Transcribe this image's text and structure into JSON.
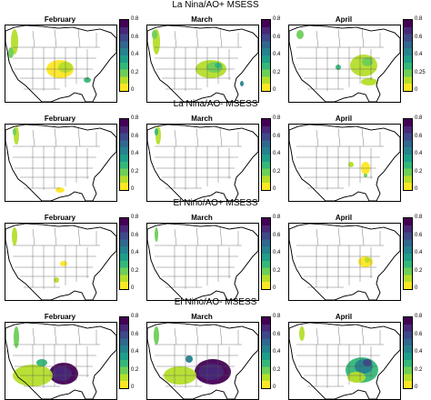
{
  "figure": {
    "rows": [
      {
        "title": "La Nina/AO+ MSESS",
        "panels": [
          {
            "month": "February",
            "ticks": [
              "0.8",
              "0.6",
              "0.4",
              "0.2",
              "0"
            ],
            "pattern": "la_ao_pos_feb"
          },
          {
            "month": "March",
            "ticks": [
              "0.8",
              "0.6",
              "0.4",
              "0.2",
              "0"
            ],
            "pattern": "la_ao_pos_mar"
          },
          {
            "month": "April",
            "ticks": [
              "0.8",
              "0.6",
              "0.4",
              "0.25",
              "0"
            ],
            "pattern": "la_ao_pos_apr"
          }
        ]
      },
      {
        "title": "La Nina/AO- MSESS",
        "panels": [
          {
            "month": "February",
            "ticks": [
              "0.8",
              "0.6",
              "0.4",
              "0.2",
              "0"
            ],
            "pattern": "la_ao_neg_feb"
          },
          {
            "month": "March",
            "ticks": [
              "0.8",
              "0.6",
              "0.4",
              "0.2",
              "0"
            ],
            "pattern": "la_ao_neg_mar"
          },
          {
            "month": "April",
            "ticks": [
              "0.8",
              "0.6",
              "0.4",
              "0.2",
              "0"
            ],
            "pattern": "la_ao_neg_apr"
          }
        ]
      },
      {
        "title": "El Nino/AO+ MSESS",
        "panels": [
          {
            "month": "February",
            "ticks": [
              "0.8",
              "0.6",
              "0.4",
              "0.2",
              "0"
            ],
            "pattern": "el_ao_pos_feb"
          },
          {
            "month": "March",
            "ticks": [
              "0.8",
              "0.6",
              "0.4",
              "0.2",
              "0"
            ],
            "pattern": "el_ao_pos_mar"
          },
          {
            "month": "April",
            "ticks": [
              "0.8",
              "0.6",
              "0.4",
              "0.2",
              "0"
            ],
            "pattern": "el_ao_pos_apr"
          }
        ]
      },
      {
        "title": "El Nino/AO- MSESS",
        "panels": [
          {
            "month": "February",
            "ticks": [
              "0.8",
              "0.6",
              "0.4",
              "0.2",
              "0"
            ],
            "pattern": "el_ao_neg_feb"
          },
          {
            "month": "March",
            "ticks": [
              "0.8",
              "0.6",
              "0.4",
              "0.2",
              "0"
            ],
            "pattern": "el_ao_neg_mar"
          },
          {
            "month": "April",
            "ticks": [
              "0.8",
              "0.6",
              "0.4",
              "0.2",
              "0"
            ],
            "pattern": "el_ao_neg_apr"
          }
        ]
      }
    ]
  },
  "colormap": [
    "#fde725",
    "#b5de2b",
    "#6ece58",
    "#35b779",
    "#1f9e89",
    "#26828e",
    "#31688e",
    "#3e4989",
    "#482878",
    "#440154"
  ]
}
